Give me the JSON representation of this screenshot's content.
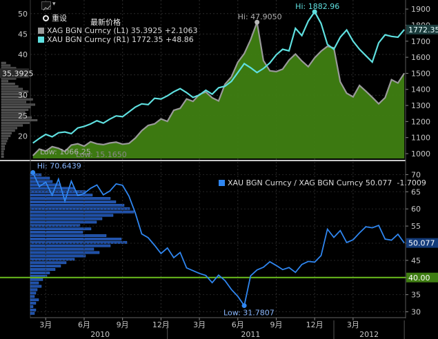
{
  "toolbar": {
    "reset_label": "重设",
    "title": "最新价格",
    "chart_icon": "line-chart-icon"
  },
  "chart_data": [
    {
      "type": "line",
      "title": "最新价格",
      "series": [
        {
          "name": "XAG BGN Curncy",
          "axis": "L1",
          "last": "35.3925",
          "change": "+2.1063",
          "color": "#9a9a9a",
          "fill": "#3f7f12",
          "x": [
            0,
            0.5,
            1,
            1.5,
            2,
            2.5,
            3,
            3.5,
            4,
            4.5,
            5,
            5.5,
            6,
            6.5,
            7,
            7.5,
            8,
            8.5,
            9,
            9.5,
            10,
            10.5,
            11,
            11.5,
            12,
            12.5,
            13,
            13.5,
            14,
            14.5,
            15,
            15.5,
            16,
            16.5,
            17,
            17.5,
            18,
            18.5,
            19,
            19.5,
            20,
            20.5,
            21,
            21.5,
            22,
            22.5,
            23,
            23.5,
            24,
            24.5,
            25,
            25.5,
            26,
            26.5,
            27,
            27.5,
            28,
            28.5,
            29
          ],
          "values": [
            15.2,
            16.8,
            16.3,
            17.4,
            17.0,
            16.2,
            17.8,
            18.1,
            17.5,
            18.6,
            18.1,
            17.9,
            18.3,
            18.5,
            18.0,
            18.2,
            19.5,
            21.3,
            22.6,
            23.0,
            24.2,
            23.6,
            26.3,
            26.8,
            29.1,
            28.5,
            30.2,
            30.8,
            29.4,
            28.6,
            32.7,
            34.5,
            38.1,
            40.2,
            43.6,
            47.9,
            38.5,
            36.0,
            35.8,
            36.4,
            38.6,
            40.1,
            38.4,
            37.0,
            39.2,
            40.8,
            42.0,
            41.6,
            33.3,
            30.5,
            29.6,
            32.4,
            31.0,
            29.5,
            27.9,
            29.4,
            33.8,
            33.0,
            35.39
          ]
        },
        {
          "name": "XAU BGN Curncy",
          "axis": "R1",
          "last": "1772.35",
          "change": "+48.86",
          "color": "#5fe0e0",
          "x": [
            0,
            0.5,
            1,
            1.5,
            2,
            2.5,
            3,
            3.5,
            4,
            4.5,
            5,
            5.5,
            6,
            6.5,
            7,
            7.5,
            8,
            8.5,
            9,
            9.5,
            10,
            10.5,
            11,
            11.5,
            12,
            12.5,
            13,
            13.5,
            14,
            14.5,
            15,
            15.5,
            16,
            16.5,
            17,
            17.5,
            18,
            18.5,
            19,
            19.5,
            20,
            20.5,
            21,
            21.5,
            22,
            22.5,
            23,
            23.5,
            24,
            24.5,
            25,
            25.5,
            26,
            26.5,
            27,
            27.5,
            28,
            28.5,
            29
          ],
          "values": [
            1066,
            1095,
            1120,
            1105,
            1130,
            1135,
            1125,
            1160,
            1170,
            1185,
            1205,
            1190,
            1215,
            1235,
            1230,
            1260,
            1290,
            1310,
            1305,
            1345,
            1340,
            1360,
            1385,
            1405,
            1380,
            1350,
            1365,
            1395,
            1370,
            1410,
            1420,
            1450,
            1505,
            1560,
            1535,
            1505,
            1530,
            1565,
            1615,
            1650,
            1640,
            1780,
            1735,
            1825,
            1883,
            1810,
            1680,
            1650,
            1725,
            1770,
            1700,
            1650,
            1610,
            1570,
            1690,
            1740,
            1730,
            1725,
            1772
          ]
        }
      ],
      "labels": {
        "xag_hi": "Hi: 47.9050",
        "xau_hi": "Hi: 1882.96",
        "xau_low": "Low: 1066.25",
        "xag_low": "Low: 15.1650",
        "xag_last_tag": "35.3925",
        "xau_last_tag": "1772.35"
      },
      "y_left": {
        "range": [
          14.5,
          52.5
        ],
        "ticks": [
          "20",
          "25",
          "30",
          "35",
          "40",
          "45",
          "50"
        ]
      },
      "y_right": {
        "range": [
          970,
          1935
        ],
        "ticks": [
          "1000",
          "1100",
          "1200",
          "1300",
          "1400",
          "1500",
          "1600",
          "1700",
          "1800",
          "1900"
        ]
      },
      "histogram_left": [
        4,
        8,
        13,
        10,
        12,
        11,
        13,
        6,
        12,
        15,
        19,
        24,
        18,
        21,
        28,
        22,
        30,
        26,
        24,
        21,
        20,
        27,
        32,
        25,
        19,
        14,
        12,
        9,
        8,
        6,
        5,
        4,
        3,
        3,
        2,
        2,
        2
      ]
    },
    {
      "type": "line",
      "series": [
        {
          "name": "XAU BGN Curncy / XAG BGN Curncy",
          "last": "50.077",
          "change": "-1.7009",
          "color": "#2f86f0",
          "x": [
            0,
            0.5,
            1,
            1.5,
            2,
            2.5,
            3,
            3.5,
            4,
            4.5,
            5,
            5.5,
            6,
            6.5,
            7,
            7.5,
            8,
            8.5,
            9,
            9.5,
            10,
            10.5,
            11,
            11.5,
            12,
            12.5,
            13,
            13.5,
            14,
            14.5,
            15,
            15.5,
            16,
            16.5,
            17,
            17.5,
            18,
            18.5,
            19,
            19.5,
            20,
            20.5,
            21,
            21.5,
            22,
            22.5,
            23,
            23.5,
            24,
            24.5,
            25,
            25.5,
            26,
            26.5,
            27,
            27.5,
            28,
            28.5,
            29
          ],
          "values": [
            70.6,
            66.5,
            67.8,
            64.0,
            68.7,
            62.3,
            68.1,
            63.9,
            64.5,
            66.0,
            67.0,
            64.1,
            65.2,
            67.3,
            66.9,
            63.7,
            58.8,
            52.7,
            51.6,
            49.4,
            47.0,
            48.6,
            45.8,
            47.3,
            42.8,
            42.0,
            41.2,
            40.6,
            38.5,
            40.7,
            39.1,
            36.5,
            34.5,
            31.8,
            40.5,
            42.2,
            43.0,
            44.6,
            43.5,
            42.3,
            42.9,
            41.5,
            43.8,
            44.7,
            44.5,
            46.4,
            54.1,
            51.7,
            53.7,
            50.2,
            51.0,
            53.0,
            54.8,
            54.5,
            55.2,
            51.2,
            50.9,
            52.6,
            50.08
          ]
        }
      ],
      "labels": {
        "hi": "Hi: 70.6439",
        "low": "Low: 31.7807",
        "last_tag": "50.077",
        "ref_tag": "40.00"
      },
      "reference_line": 40,
      "y_right": {
        "range": [
          28.5,
          73.5
        ],
        "ticks": [
          "30",
          "35",
          "40",
          "45",
          "50",
          "55",
          "60",
          "65",
          "70"
        ]
      },
      "histogram_left": [
        8,
        14,
        16,
        22,
        32,
        40,
        45,
        58,
        62,
        68,
        72,
        75,
        60,
        52,
        48,
        36,
        44,
        38,
        55,
        66,
        70,
        58,
        46,
        50,
        40,
        32,
        26,
        22,
        18,
        14,
        12,
        9,
        6,
        8,
        5,
        4,
        3,
        6,
        4,
        2,
        4,
        3
      ]
    }
  ],
  "x_axis": {
    "month_ticks": [
      {
        "t": 1,
        "label": "3月"
      },
      {
        "t": 4,
        "label": "6月"
      },
      {
        "t": 7,
        "label": "9月"
      },
      {
        "t": 10,
        "label": "12月"
      },
      {
        "t": 13,
        "label": "3月"
      },
      {
        "t": 16,
        "label": "6月"
      },
      {
        "t": 19,
        "label": "9月"
      },
      {
        "t": 22,
        "label": "12月"
      },
      {
        "t": 25,
        "label": "3月"
      }
    ],
    "years": [
      {
        "t0": 0,
        "t1": 10.5,
        "label": "2010"
      },
      {
        "t0": 10.5,
        "t1": 23.5,
        "label": "2011"
      },
      {
        "t0": 23.5,
        "t1": 29,
        "label": "2012"
      }
    ],
    "range": [
      -0.2,
      29.1
    ]
  }
}
